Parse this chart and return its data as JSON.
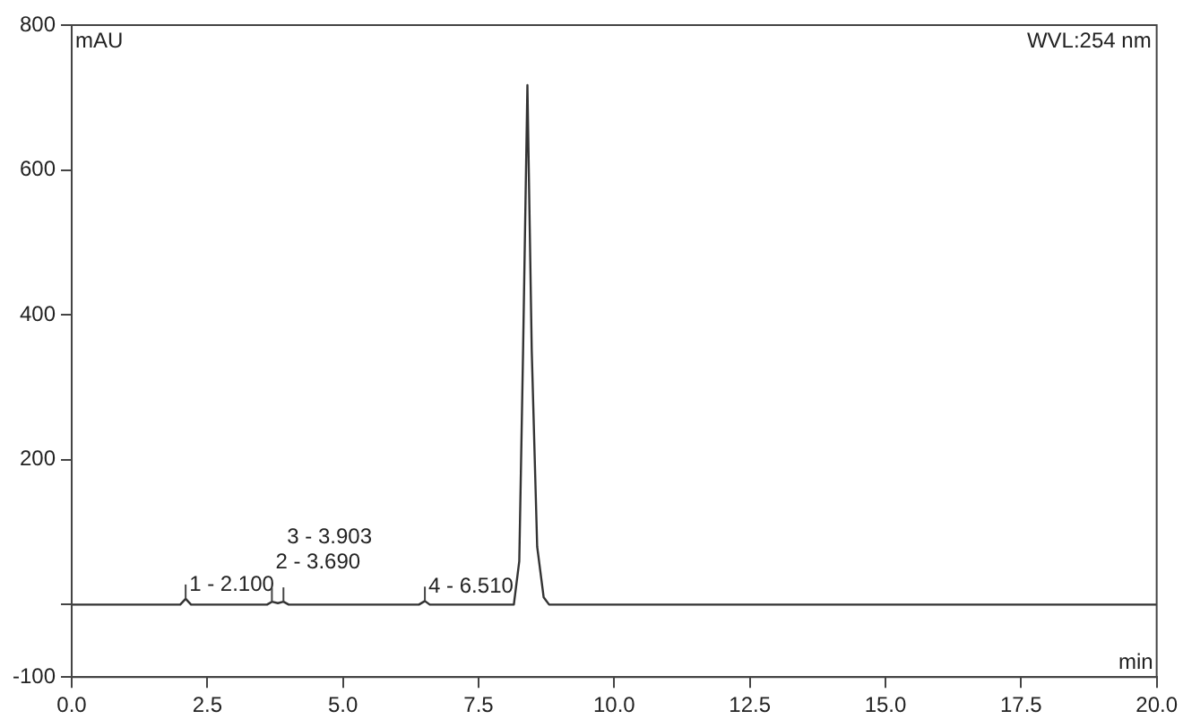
{
  "chart_data": {
    "type": "line",
    "xlabel": "min",
    "ylabel": "mAU",
    "annotations": [
      "WVL:254 nm",
      {
        "text": "1 - 2.100",
        "x": 2.1,
        "y": 8
      },
      {
        "text": "2 - 3.690",
        "x": 3.69,
        "y": 4
      },
      {
        "text": "3 - 3.903",
        "x": 3.903,
        "y": 4
      },
      {
        "text": "4 - 6.510",
        "x": 6.51,
        "y": 5
      }
    ],
    "x": [
      0,
      2.0,
      2.1,
      2.2,
      3.6,
      3.69,
      3.8,
      3.903,
      4.0,
      6.4,
      6.51,
      6.6,
      8.15,
      8.25,
      8.32,
      8.4,
      8.48,
      8.58,
      8.7,
      8.8,
      20
    ],
    "series": [
      {
        "color": "#333333",
        "values": [
          0,
          0,
          8,
          0,
          0,
          4,
          2,
          4,
          0,
          0,
          5,
          0,
          0,
          60,
          350,
          717,
          350,
          80,
          10,
          0,
          0
        ]
      }
    ],
    "xlim": [
      0,
      20
    ],
    "ylim": [
      -100,
      800
    ],
    "xticks": [
      {
        "value": 0,
        "label": "0.0"
      },
      {
        "value": 2.5,
        "label": "2.5"
      },
      {
        "value": 5,
        "label": "5.0"
      },
      {
        "value": 7.5,
        "label": "7.5"
      },
      {
        "value": 10,
        "label": "10.0"
      },
      {
        "value": 12.5,
        "label": "12.5"
      },
      {
        "value": 15,
        "label": "15.0"
      },
      {
        "value": 17.5,
        "label": "17.5"
      },
      {
        "value": 20,
        "label": "20.0"
      }
    ],
    "yticks": [
      -100,
      {
        "value": 0,
        "label": null
      },
      200,
      400,
      600,
      800
    ],
    "grid": false,
    "legend": false,
    "marker": "none",
    "line_style": "solid"
  }
}
